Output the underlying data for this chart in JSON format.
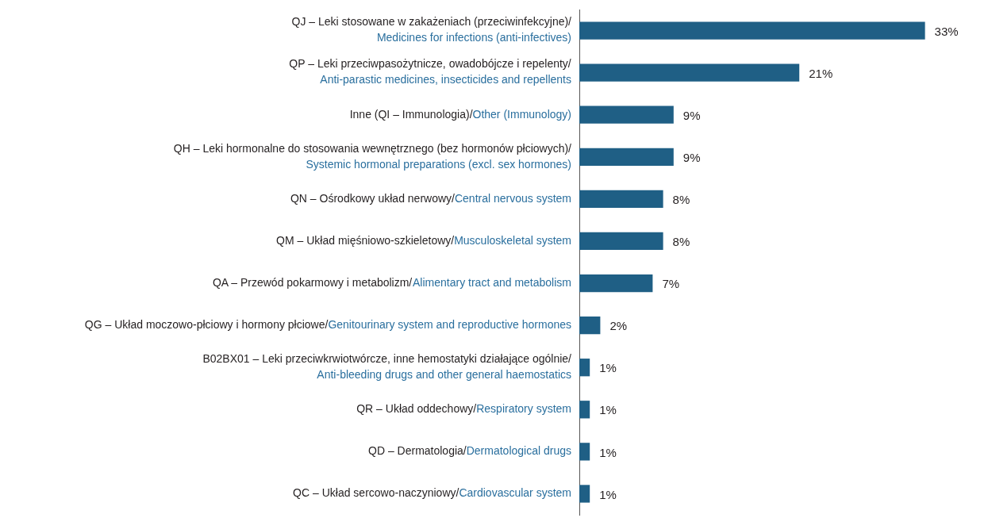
{
  "chart_data": {
    "type": "bar",
    "orientation": "horizontal",
    "categories": [
      "QJ – Leki stosowane w zakażeniach (przeciwinfekcyjne)/\nMedicines for infections (anti-infectives)",
      "QP – Leki przeciwpasożytnicze, owadobójcze i repelenty/\nAnti-parastic medicines, insecticides and repellents",
      "Inne (QI – Immunologia)/Other (Immunology)",
      "QH – Leki hormonalne do stosowania wewnętrznego (bez hormonów płciowych)/\nSystemic hormonal preparations (excl. sex hormones)",
      "QN – Ośrodkowy układ nerwowy/Central nervous system",
      "QM – Układ mięśniowo-szkieletowy/Musculoskeletal system",
      "QA – Przewód pokarmowy i metabolizm/Alimentary tract and metabolism",
      "QG – Układ moczowo-płciowy i hormony płciowe/Genitourinary system and reproductive hormones",
      "B02BX01 – Leki przeciwkrwiotwórcze, inne hemostatyki działające ogólnie/\nAnti-bleeding drugs and other general haemostatics",
      "QR – Układ oddechowy/Respiratory system",
      "QD – Dermatologia/Dermatological drugs",
      "QC – Układ sercowo-naczyniowy/Cardiovascular system"
    ],
    "values": [
      33,
      21,
      9,
      9,
      8,
      8,
      7,
      2,
      1,
      1,
      1,
      1
    ],
    "value_labels": [
      "33%",
      "21%",
      "9%",
      "9%",
      "8%",
      "8%",
      "7%",
      "2%",
      "1%",
      "1%",
      "1%",
      "1%"
    ],
    "color": "#1f5f85",
    "grid": false,
    "legend": false
  }
}
